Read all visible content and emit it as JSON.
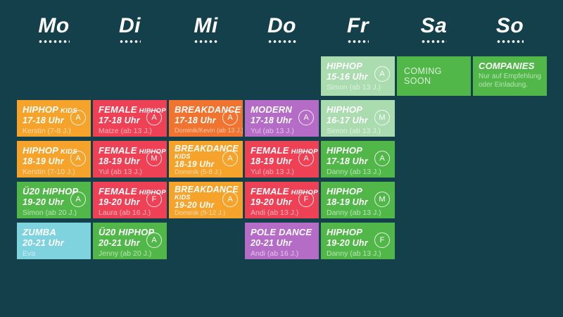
{
  "days": [
    "Mo",
    "Di",
    "Mi",
    "Do",
    "Fr",
    "Sa",
    "So"
  ],
  "colors": {
    "background": "#14404c",
    "amber": "#f5a32b",
    "red": "#ef4156",
    "orange": "#f0742f",
    "purple": "#b56cc6",
    "green": "#51b748",
    "light_green": "#aadcb0",
    "light_blue": "#7fd3de",
    "text": "#ffffff"
  },
  "cards": [
    {
      "day": "Mo",
      "title": "HIPHOP",
      "title_suffix": "KIDS",
      "time": "17-18 Uhr",
      "teacher": "Kerstin (7-8 J.)",
      "badge": "A",
      "color": "#f5a32b"
    },
    {
      "day": "Mo",
      "title": "HIPHOP",
      "title_suffix": "KIDS",
      "time": "18-19 Uhr",
      "teacher": "Kerstin (7-10 J.)",
      "badge": "A",
      "color": "#f5a32b"
    },
    {
      "day": "Mo",
      "title": "Ü20 HIPHOP",
      "time": "19-20 Uhr",
      "teacher": "Simon (ab 20 J.)",
      "badge": "A",
      "color": "#51b748"
    },
    {
      "day": "Mo",
      "title": "ZUMBA",
      "time": "20-21 Uhr",
      "teacher": "Eva",
      "color": "#7fd3de"
    },
    {
      "day": "Di",
      "title": "FEMALE",
      "title_suffix": "HIPHOP",
      "time": "17-18 Uhr",
      "teacher": "Matze (ab 13 J.)",
      "badge": "A",
      "color": "#ef4156"
    },
    {
      "day": "Di",
      "title": "FEMALE",
      "title_suffix": "HIPHOP",
      "time": "18-19 Uhr",
      "teacher": "Yul (ab 13 J.)",
      "badge": "M",
      "color": "#ef4156"
    },
    {
      "day": "Di",
      "title": "FEMALE",
      "title_suffix": "HIPHOP",
      "time": "19-20 Uhr",
      "teacher": "Laura (ab 16 J.)",
      "badge": "F",
      "color": "#ef4156"
    },
    {
      "day": "Di",
      "title": "Ü20 HIPHOP",
      "time": "20-21 Uhr",
      "teacher": "Jenny (ab 20 J.)",
      "badge": "A",
      "color": "#51b748"
    },
    {
      "day": "Mi",
      "title": "BREAKDANCE",
      "time": "17-18 Uhr",
      "teacher": "Dominik/Kevin (ab 13 J.)",
      "badge": "A",
      "color": "#f0742f"
    },
    {
      "day": "Mi",
      "title": "BREAKDANCE",
      "title_block": "KIDS",
      "time": "18-19 Uhr",
      "teacher": "Dominik (5-8 J.)",
      "badge": "A",
      "color": "#f5a32b"
    },
    {
      "day": "Mi",
      "title": "BREAKDANCE",
      "title_block": "KIDS",
      "time": "19-20 Uhr",
      "teacher": "Dominik (9-12 J.)",
      "badge": "A",
      "color": "#f5a32b"
    },
    {
      "day": "Do",
      "title": "MODERN",
      "time": "17-18 Uhr",
      "teacher": "Yul (ab 13 J.)",
      "badge": "A",
      "color": "#b56cc6"
    },
    {
      "day": "Do",
      "title": "FEMALE",
      "title_suffix": "HIPHOP",
      "time": "18-19 Uhr",
      "teacher": "Yul (ab 13 J.)",
      "badge": "A",
      "color": "#ef4156"
    },
    {
      "day": "Do",
      "title": "FEMALE",
      "title_suffix": "HIPHOP",
      "time": "19-20 Uhr",
      "teacher": "Andi (ab 13 J.)",
      "badge": "F",
      "color": "#ef4156"
    },
    {
      "day": "Do",
      "title": "POLE DANCE",
      "time": "20-21 Uhr",
      "teacher": "Andi (ab 16 J.)",
      "color": "#b56cc6"
    },
    {
      "day": "Fr",
      "title": "HIPHOP",
      "time": "15-16 Uhr",
      "teacher": "Simon (ab 13 J.)",
      "badge": "A",
      "color": "#aadcb0"
    },
    {
      "day": "Fr",
      "title": "HIPHOP",
      "time": "16-17 Uhr",
      "teacher": "Simon (ab 13 J.)",
      "badge": "M",
      "color": "#aadcb0"
    },
    {
      "day": "Fr",
      "title": "HIPHOP",
      "time": "17-18 Uhr",
      "teacher": "Danny (ab 13 J.)",
      "badge": "A",
      "color": "#51b748"
    },
    {
      "day": "Fr",
      "title": "HIPHOP",
      "time": "18-19 Uhr",
      "teacher": "Danny (ab 13 J.)",
      "badge": "M",
      "color": "#51b748"
    },
    {
      "day": "Fr",
      "title": "HIPHOP",
      "time": "19-20 Uhr",
      "teacher": "Danny (ab 13 J.)",
      "badge": "F",
      "color": "#51b748"
    },
    {
      "day": "Sa",
      "title": "COMING SOON",
      "color": "#51b748"
    },
    {
      "day": "So",
      "title": "COMPANIES",
      "note": "Nur auf Empfehlung oder Einladung.",
      "color": "#51b748"
    }
  ]
}
